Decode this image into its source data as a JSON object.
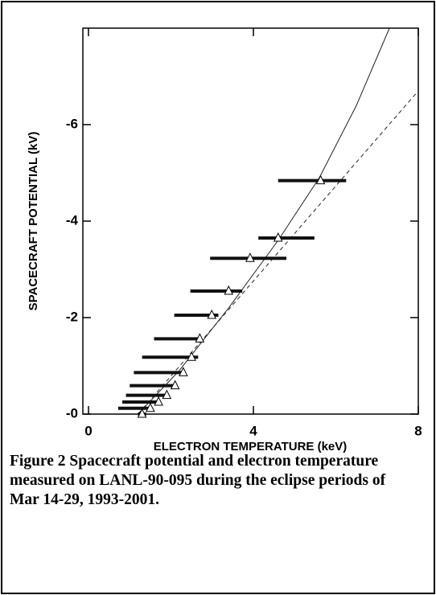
{
  "chart_data": {
    "type": "scatter",
    "xlabel": "ELECTRON TEMPERATURE (keV)",
    "ylabel": "SPACECRAFT POTENTIAL  (kV)",
    "caption": "Figure 2   Spacecraft potential and electron temperature measured on LANL-90-095 during the eclipse periods of  Mar 14-29, 1993-2001.",
    "xlim": [
      0,
      8
    ],
    "xticks": [
      0,
      4,
      8
    ],
    "ylim": [
      0,
      -8
    ],
    "yticks": [
      {
        "value": 0,
        "label": "-0"
      },
      -2,
      -4,
      -6
    ],
    "color": "#111111",
    "points": [
      {
        "x": 5.63,
        "y": -4.84,
        "xmin": 4.6,
        "xmax": 6.25
      },
      {
        "x": 4.6,
        "y": -3.65,
        "xmin": 4.12,
        "xmax": 5.48
      },
      {
        "x": 3.92,
        "y": -3.23,
        "xmin": 2.95,
        "xmax": 4.8
      },
      {
        "x": 3.4,
        "y": -2.55,
        "xmin": 2.47,
        "xmax": 3.73
      },
      {
        "x": 2.99,
        "y": -2.05,
        "xmin": 2.08,
        "xmax": 3.15
      },
      {
        "x": 2.7,
        "y": -1.56,
        "xmin": 1.59,
        "xmax": 2.66
      },
      {
        "x": 2.5,
        "y": -1.18,
        "xmin": 1.3,
        "xmax": 2.66
      },
      {
        "x": 2.3,
        "y": -0.86,
        "xmin": 1.1,
        "xmax": 2.27
      },
      {
        "x": 2.1,
        "y": -0.59,
        "xmin": 1.0,
        "xmax": 2.08
      },
      {
        "x": 1.9,
        "y": -0.39,
        "xmin": 0.91,
        "xmax": 1.88
      },
      {
        "x": 1.7,
        "y": -0.25,
        "xmin": 0.82,
        "xmax": 1.69
      },
      {
        "x": 1.5,
        "y": -0.12,
        "xmin": 0.72,
        "xmax": 1.5
      },
      {
        "x": 1.3,
        "y": 0,
        "xmin": 1.2,
        "xmax": 1.4
      }
    ],
    "fits": [
      {
        "style": "solid",
        "x": [
          1.2,
          2.2,
          3.4,
          4.6,
          5.6,
          6.5,
          7.3
        ],
        "y": [
          0,
          -0.9,
          -2.2,
          -3.6,
          -4.9,
          -6.4,
          -8
        ]
      },
      {
        "style": "dashed",
        "x": [
          1.2,
          8
        ],
        "y": [
          0,
          -6.7
        ]
      }
    ]
  }
}
